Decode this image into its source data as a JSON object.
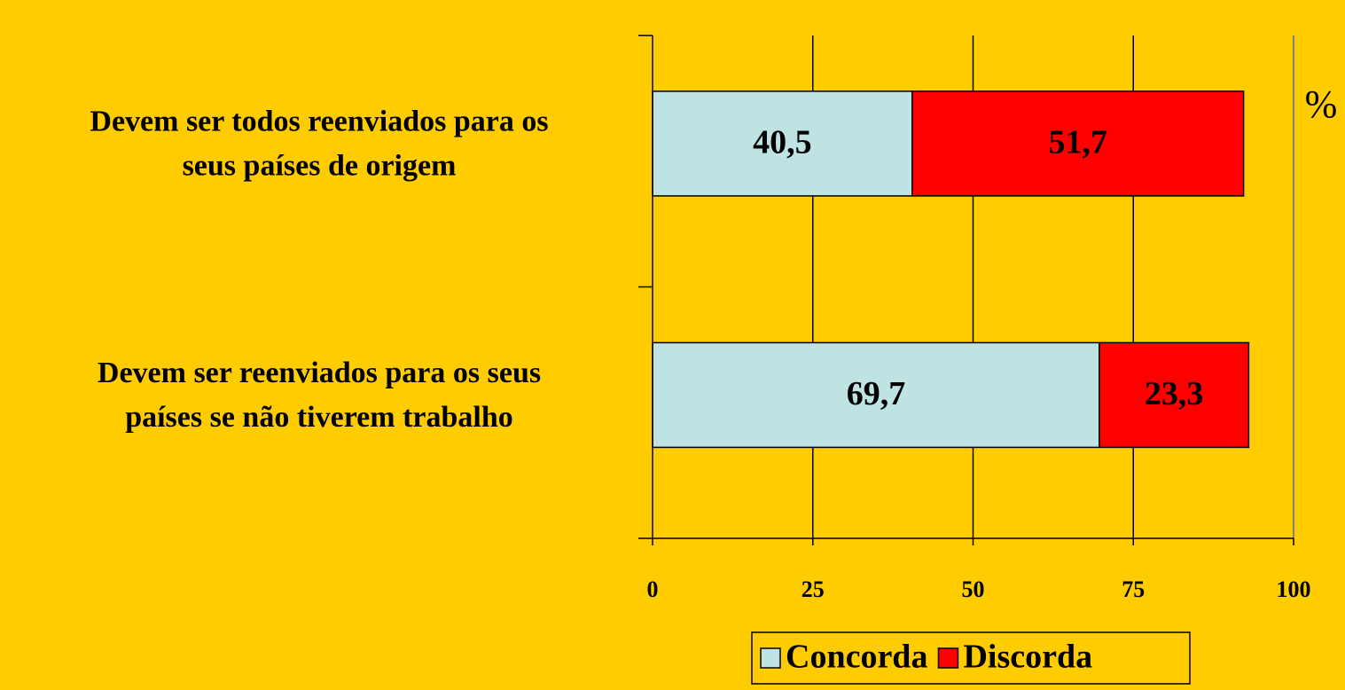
{
  "chart_data": {
    "type": "stacked-bar-horizontal",
    "categories": [
      [
        "Devem ser todos reenviados para os",
        "seus países de origem"
      ],
      [
        "Devem ser reenviados para os seus",
        "países se não tiverem trabalho"
      ]
    ],
    "series": [
      {
        "name": "Concorda",
        "color": "#bfe3e3",
        "values": [
          40.5,
          69.7
        ],
        "value_labels": [
          "40,5",
          "69,7"
        ]
      },
      {
        "name": "Discorda",
        "color": "#ff0000",
        "values": [
          51.7,
          23.3
        ],
        "value_labels": [
          "51,7",
          "23,3"
        ]
      }
    ],
    "xlim": [
      0,
      100
    ],
    "xticks": [
      0,
      25,
      50,
      75,
      100
    ],
    "x_axis_label": "%",
    "grid": true,
    "legend": "bottom"
  }
}
